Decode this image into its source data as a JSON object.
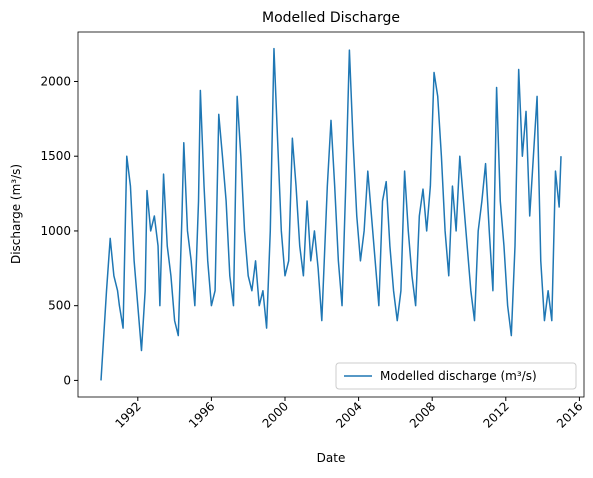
{
  "chart_data": {
    "type": "line",
    "title": "Modelled Discharge",
    "x_label": "Date",
    "y_label": "Discharge (m³/s)",
    "x": [
      1990.0,
      1990.1,
      1990.3,
      1990.5,
      1990.7,
      1990.9,
      1991.0,
      1991.2,
      1991.4,
      1991.6,
      1991.8,
      1992.0,
      1992.2,
      1992.4,
      1992.5,
      1992.7,
      1992.9,
      1993.1,
      1993.2,
      1993.4,
      1993.6,
      1993.8,
      1994.0,
      1994.2,
      1994.4,
      1994.5,
      1994.7,
      1994.9,
      1995.1,
      1995.3,
      1995.4,
      1995.6,
      1995.8,
      1996.0,
      1996.2,
      1996.4,
      1996.6,
      1996.8,
      1997.0,
      1997.2,
      1997.4,
      1997.6,
      1997.8,
      1998.0,
      1998.2,
      1998.4,
      1998.6,
      1998.8,
      1999.0,
      1999.2,
      1999.4,
      1999.6,
      1999.8,
      2000.0,
      2000.2,
      2000.4,
      2000.6,
      2000.8,
      2001.0,
      2001.2,
      2001.4,
      2001.6,
      2001.8,
      2002.0,
      2002.3,
      2002.5,
      2002.7,
      2002.9,
      2003.1,
      2003.3,
      2003.5,
      2003.7,
      2003.9,
      2004.1,
      2004.3,
      2004.5,
      2004.7,
      2004.9,
      2005.1,
      2005.3,
      2005.5,
      2005.7,
      2005.9,
      2006.1,
      2006.3,
      2006.5,
      2006.7,
      2006.9,
      2007.1,
      2007.3,
      2007.5,
      2007.7,
      2007.9,
      2008.1,
      2008.3,
      2008.5,
      2008.7,
      2008.9,
      2009.1,
      2009.3,
      2009.5,
      2009.7,
      2009.9,
      2010.1,
      2010.3,
      2010.5,
      2010.7,
      2010.9,
      2011.1,
      2011.3,
      2011.5,
      2011.7,
      2011.9,
      2012.1,
      2012.3,
      2012.5,
      2012.7,
      2012.9,
      2013.1,
      2013.3,
      2013.5,
      2013.7,
      2013.9,
      2014.1,
      2014.3,
      2014.5,
      2014.7,
      2014.9,
      2015.0
    ],
    "series": [
      {
        "name": "Modelled discharge (m³/s)",
        "color": "#1f77b4",
        "values": [
          0,
          200,
          600,
          950,
          700,
          600,
          500,
          350,
          1500,
          1300,
          800,
          500,
          200,
          600,
          1270,
          1000,
          1100,
          900,
          500,
          1380,
          900,
          700,
          400,
          300,
          1100,
          1590,
          1000,
          800,
          500,
          1200,
          1940,
          1300,
          800,
          500,
          600,
          1780,
          1500,
          1200,
          700,
          500,
          1900,
          1500,
          1000,
          700,
          600,
          800,
          500,
          600,
          350,
          1000,
          2220,
          1600,
          1000,
          700,
          800,
          1620,
          1300,
          900,
          700,
          1200,
          800,
          1000,
          750,
          400,
          1300,
          1740,
          1300,
          800,
          500,
          1300,
          2210,
          1600,
          1100,
          800,
          1000,
          1400,
          1100,
          800,
          500,
          1200,
          1330,
          900,
          600,
          400,
          600,
          1400,
          1000,
          700,
          500,
          1100,
          1280,
          1000,
          1300,
          2060,
          1900,
          1500,
          1000,
          700,
          1300,
          1000,
          1500,
          1200,
          900,
          600,
          400,
          1000,
          1200,
          1450,
          1000,
          600,
          1960,
          1200,
          900,
          500,
          300,
          900,
          2080,
          1500,
          1800,
          1100,
          1500,
          1900,
          800,
          400,
          600,
          400,
          1400,
          1160,
          1500
        ]
      }
    ],
    "xlim": [
      1988.75,
      2016.25
    ],
    "xticks": [
      1992,
      1996,
      2000,
      2004,
      2008,
      2012,
      2016
    ],
    "ylim": [
      -111,
      2331
    ],
    "yticks": [
      0,
      500,
      1000,
      1500,
      2000
    ],
    "legend": "lower right"
  }
}
